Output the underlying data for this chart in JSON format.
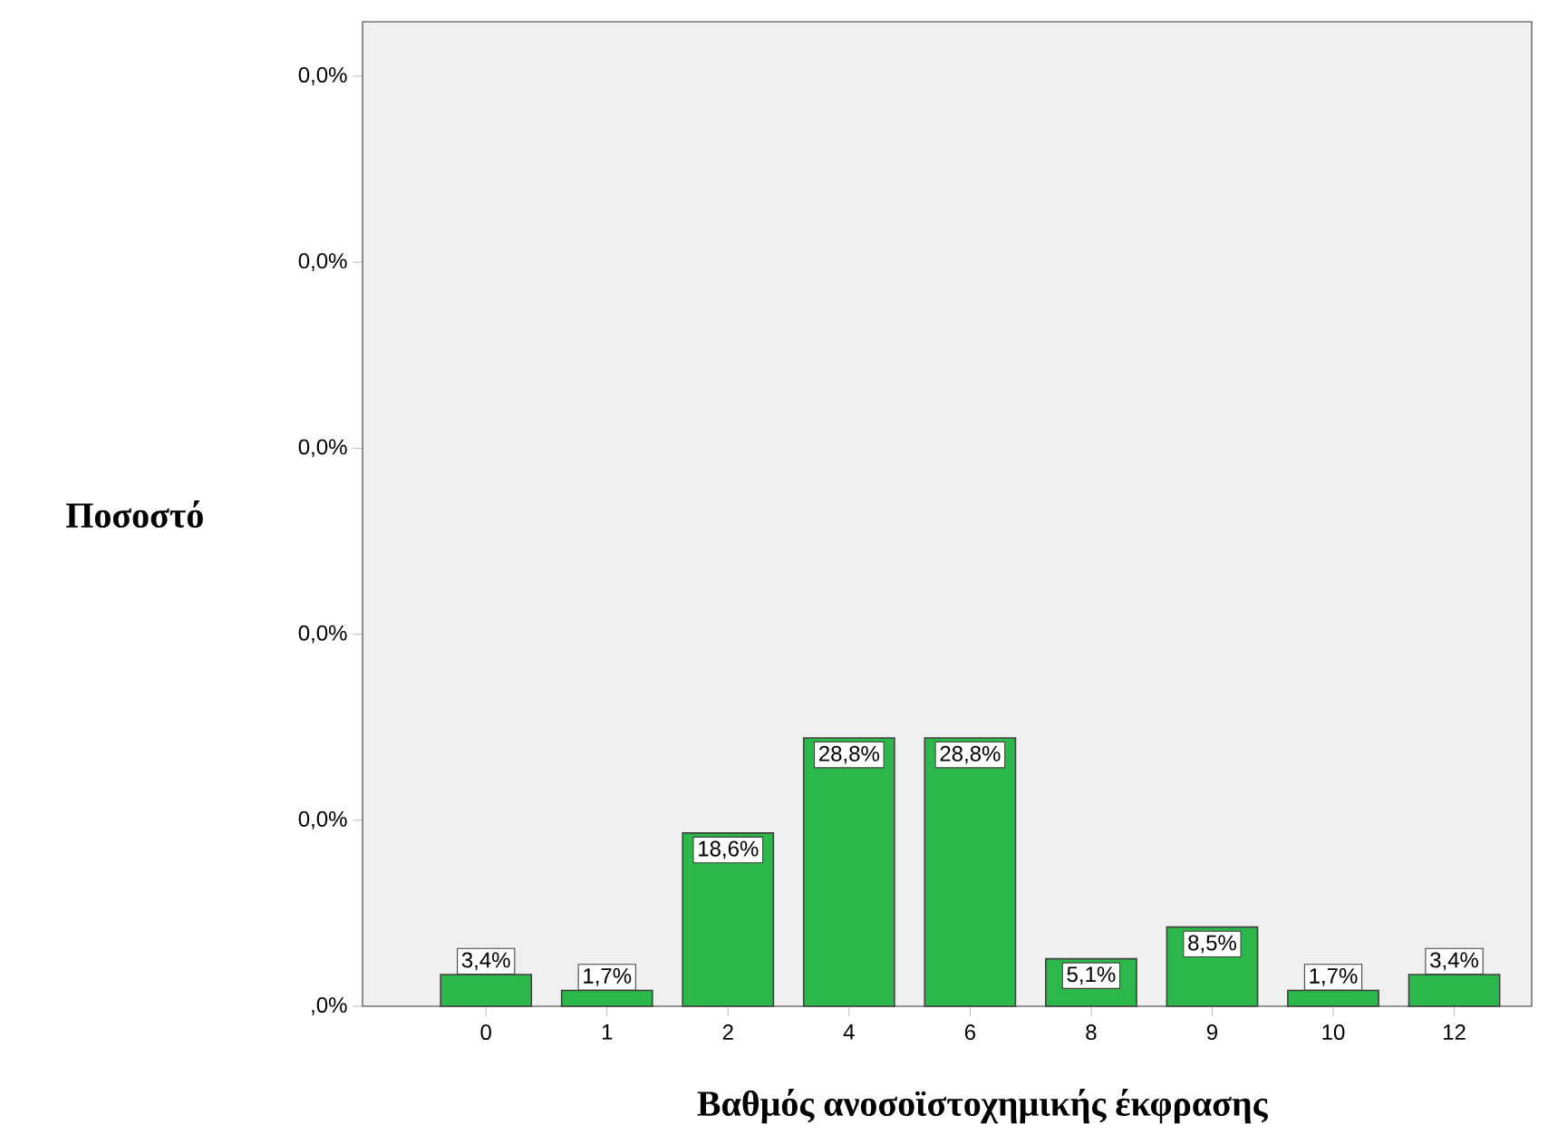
{
  "chart_data": {
    "type": "bar",
    "xlabel": "Βαθμός ανοσοϊστοχημικής έκφρασης",
    "categories": [
      "0",
      "1",
      "2",
      "4",
      "6",
      "8",
      "9",
      "10",
      "12"
    ],
    "values": [
      3.4,
      1.7,
      18.6,
      28.8,
      28.8,
      5.1,
      8.5,
      1.7,
      3.4
    ],
    "value_labels": [
      "3,4%",
      "1,7%",
      "18,6%",
      "28,8%",
      "28,8%",
      "5,1%",
      "8,5%",
      "1,7%",
      "3,4%"
    ],
    "color": "#2db84b",
    "annotations": [
      "Ποσοστό",
      "0,0%",
      "0,0%",
      "0,0%",
      "0,0%",
      "0,0%",
      ",0%"
    ]
  }
}
